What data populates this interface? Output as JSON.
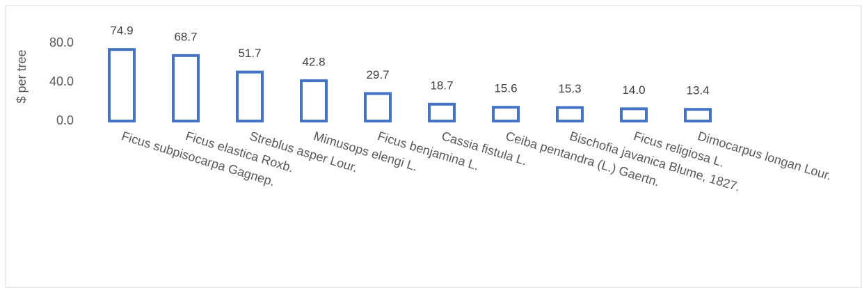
{
  "chart_data": {
    "type": "bar",
    "y_label": "$ per tree",
    "categories": [
      "Ficus subpisocarpa Gagnep.",
      "Ficus elastica Roxb.",
      "Streblus asper Lour.",
      "Mimusops elengi L.",
      "Ficus benjamina L.",
      "Cassia fistula L.",
      "Ceiba pentandra (L.) Gaertn.",
      "Bischofia javanica Blume, 1827.",
      "Ficus religiosa L.",
      "Dimocarpus longan Lour."
    ],
    "values": [
      74.9,
      68.7,
      51.7,
      42.8,
      29.7,
      18.7,
      15.6,
      15.3,
      14.0,
      13.4
    ],
    "value_labels": [
      "74.9",
      "68.7",
      "51.7",
      "42.8",
      "29.7",
      "18.7",
      "15.6",
      "15.3",
      "14.0",
      "13.4"
    ],
    "color": "#4472c4",
    "ylim": [
      0,
      80
    ],
    "yticks": [
      {
        "value": 0,
        "label": "0.0"
      },
      {
        "value": 40,
        "label": "40.0"
      },
      {
        "value": 80,
        "label": "80.0"
      }
    ],
    "grid": false
  }
}
